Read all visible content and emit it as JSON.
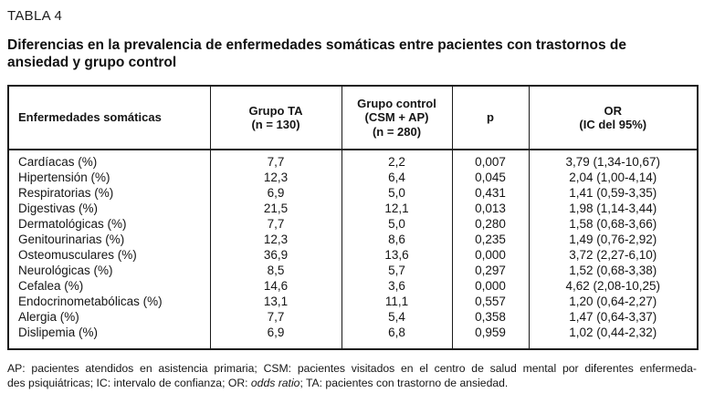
{
  "page": {
    "label": "TABLA 4",
    "title": "Diferencias en la prevalencia de enfermedades somáticas entre pacientes con trastornos de ansiedad y grupo control"
  },
  "table": {
    "columns": [
      {
        "id": "enfermedad",
        "label": "Enfermedades somáticas",
        "align": "left"
      },
      {
        "id": "grupo-ta",
        "label": "Grupo TA\n(n = 130)",
        "align": "center"
      },
      {
        "id": "grupo-control",
        "label": "Grupo control\n(CSM + AP)\n(n = 280)",
        "align": "center"
      },
      {
        "id": "p",
        "label": "p",
        "align": "center"
      },
      {
        "id": "or",
        "label": "OR\n(IC del 95%)",
        "align": "center"
      }
    ],
    "rows": [
      [
        "Cardíacas (%)",
        "7,7",
        "2,2",
        "0,007",
        "3,79 (1,34-10,67)"
      ],
      [
        "Hipertensión (%)",
        "12,3",
        "6,4",
        "0,045",
        "2,04 (1,00-4,14)"
      ],
      [
        "Respiratorias (%)",
        "6,9",
        "5,0",
        "0,431",
        "1,41 (0,59-3,35)"
      ],
      [
        "Digestivas (%)",
        "21,5",
        "12,1",
        "0,013",
        "1,98 (1,14-3,44)"
      ],
      [
        "Dermatológicas (%)",
        "7,7",
        "5,0",
        "0,280",
        "1,58 (0,68-3,66)"
      ],
      [
        "Genitourinarias (%)",
        "12,3",
        "8,6",
        "0,235",
        "1,49 (0,76-2,92)"
      ],
      [
        "Osteomusculares (%)",
        "36,9",
        "13,6",
        "0,000",
        "3,72 (2,27-6,10)"
      ],
      [
        "Neurológicas (%)",
        "8,5",
        "5,7",
        "0,297",
        "1,52 (0,68-3,38)"
      ],
      [
        "Cefalea (%)",
        "14,6",
        "3,6",
        "0,000",
        "4,62 (2,08-10,25)"
      ],
      [
        "Endocrinometabólicas (%)",
        "13,1",
        "11,1",
        "0,557",
        "1,20 (0,64-2,27)"
      ],
      [
        "Alergia (%)",
        "7,7",
        "5,4",
        "0,358",
        "1,47 (0,64-3,37)"
      ],
      [
        "Dislipemia (%)",
        "6,9",
        "6,8",
        "0,959",
        "1,02 (0,44-2,32)"
      ]
    ]
  },
  "footnote": {
    "line1": "AP: pacientes atendidos en asistencia primaria; CSM: pacientes visitados en el centro de salud mental por diferentes enfermeda-",
    "line2_parts": [
      {
        "text": "des psiquiátricas; IC: intervalo de confianza; OR: ",
        "italic": false
      },
      {
        "text": "odds ratio",
        "italic": true
      },
      {
        "text": "; TA: pacientes con trastorno de ansiedad.",
        "italic": false
      }
    ]
  }
}
